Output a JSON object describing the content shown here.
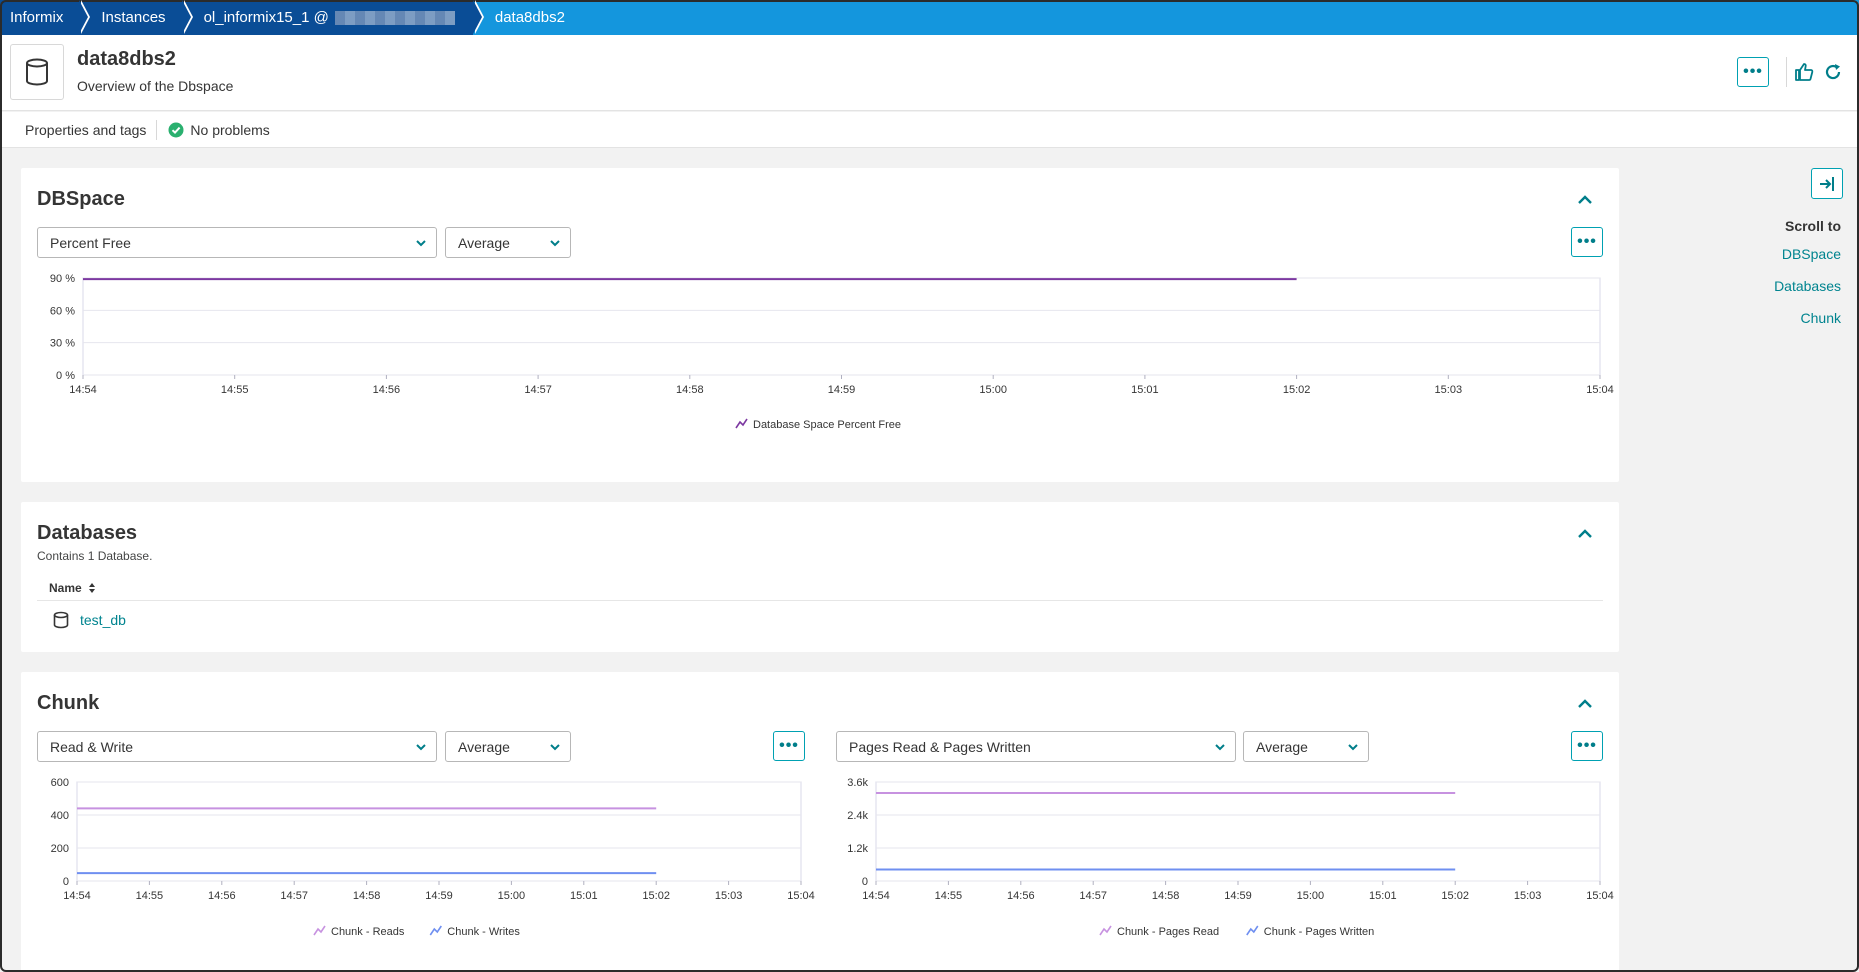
{
  "breadcrumb": {
    "items": [
      {
        "label": "Informix"
      },
      {
        "label": "Instances"
      },
      {
        "label": "ol_informix15_1 @"
      },
      {
        "label": "data8dbs2"
      }
    ]
  },
  "header": {
    "title": "data8dbs2",
    "subtitle": "Overview of the Dbspace",
    "more_label": "•••"
  },
  "props": {
    "properties_label": "Properties and tags",
    "problems_label": "No problems"
  },
  "dbspace": {
    "title": "DBSpace",
    "metric_select": "Percent Free",
    "agg_select": "Average",
    "more_label": "•••",
    "chart_data": {
      "type": "line",
      "x": [
        "14:54",
        "14:55",
        "14:56",
        "14:57",
        "14:58",
        "14:59",
        "15:00",
        "15:01",
        "15:02",
        "15:03",
        "15:04"
      ],
      "yticks": [
        "90 %",
        "60 %",
        "30 %",
        "0 %"
      ],
      "ylim": [
        0,
        90
      ],
      "series": [
        {
          "name": "Database Space Percent Free",
          "color": "#7c38a1",
          "values": [
            89,
            89,
            89,
            89,
            89,
            89,
            89,
            89,
            89,
            null,
            null
          ]
        }
      ]
    }
  },
  "databases": {
    "title": "Databases",
    "subtitle": "Contains 1 Database.",
    "column_name": "Name",
    "rows": [
      {
        "name": "test_db"
      }
    ]
  },
  "chunk": {
    "title": "Chunk",
    "left": {
      "metric_select": "Read & Write",
      "agg_select": "Average",
      "more_label": "•••",
      "chart_data": {
        "type": "line",
        "x": [
          "14:54",
          "14:55",
          "14:56",
          "14:57",
          "14:58",
          "14:59",
          "15:00",
          "15:01",
          "15:02",
          "15:03",
          "15:04"
        ],
        "yticks": [
          "600",
          "400",
          "200",
          "0"
        ],
        "ylim": [
          0,
          600
        ],
        "series": [
          {
            "name": "Chunk - Reads",
            "color": "#c792e0",
            "values": [
              440,
              440,
              440,
              440,
              440,
              440,
              440,
              440,
              440,
              null,
              null
            ]
          },
          {
            "name": "Chunk - Writes",
            "color": "#6f8ff0",
            "values": [
              48,
              48,
              48,
              48,
              48,
              48,
              48,
              48,
              48,
              null,
              null
            ]
          }
        ]
      }
    },
    "right": {
      "metric_select": "Pages Read & Pages Written",
      "agg_select": "Average",
      "more_label": "•••",
      "chart_data": {
        "type": "line",
        "x": [
          "14:54",
          "14:55",
          "14:56",
          "14:57",
          "14:58",
          "14:59",
          "15:00",
          "15:01",
          "15:02",
          "15:03",
          "15:04"
        ],
        "yticks": [
          "3.6k",
          "2.4k",
          "1.2k",
          "0"
        ],
        "ylim": [
          0,
          3600
        ],
        "series": [
          {
            "name": "Chunk - Pages Read",
            "color": "#c792e0",
            "values": [
              3200,
              3200,
              3200,
              3200,
              3200,
              3200,
              3200,
              3200,
              3200,
              null,
              null
            ]
          },
          {
            "name": "Chunk - Pages Written",
            "color": "#6f8ff0",
            "values": [
              420,
              420,
              420,
              420,
              420,
              420,
              420,
              420,
              420,
              null,
              null
            ]
          }
        ]
      }
    }
  },
  "rail": {
    "title": "Scroll to",
    "links": [
      {
        "label": "DBSpace"
      },
      {
        "label": "Databases"
      },
      {
        "label": "Chunk"
      }
    ]
  }
}
